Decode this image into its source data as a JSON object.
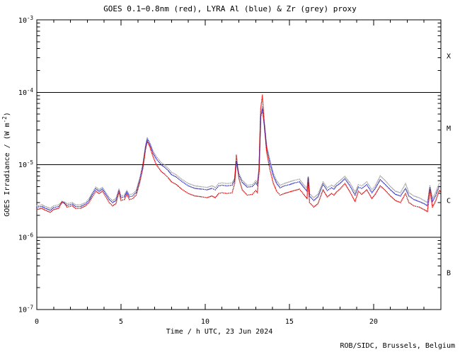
{
  "title": "GOES 0.1−0.8nm (red), LYRA Al (blue) & Zr (grey) proxy",
  "xlabel": "Time / h UTC, 23 Jun 2024",
  "ylabel_main": "GOES Irradiance / (W m",
  "ylabel_sup": "-2",
  "ylabel_close": ")",
  "credit": "ROB/SIDC, Brussels, Belgium",
  "flare_class_labels": [
    "X",
    "M",
    "C",
    "B"
  ],
  "y_axis": {
    "base": "10",
    "exponents": [
      "-3",
      "-4",
      "-5",
      "-6",
      "-7"
    ]
  },
  "x_tick_labels": [
    "0",
    "5",
    "10",
    "15",
    "20"
  ],
  "colors": {
    "red": "#d40000",
    "blue": "#2424bb",
    "grey": "#9a9a9a",
    "axis": "#000000",
    "background": "#ffffff"
  },
  "chart_data": {
    "type": "line",
    "style": "dotted",
    "title": "GOES 0.1−0.8nm (red), LYRA Al (blue) & Zr (grey) proxy",
    "xlabel": "Time / h UTC, 23 Jun 2024",
    "ylabel": "GOES Irradiance / (W m^-2)",
    "xlim": [
      0,
      24
    ],
    "x_major_ticks": [
      0,
      5,
      10,
      15,
      20
    ],
    "x_minor_step_hours": 1,
    "y_log_range_exponents": [
      -3,
      -7
    ],
    "grid": false,
    "legend": "encoded in title colors",
    "hlines_wm2": [
      0.0001,
      1e-05,
      1e-06
    ],
    "value_unit": "1e-6 W m^-2",
    "x_hours": [
      0,
      0.3,
      0.5,
      0.8,
      1,
      1.3,
      1.5,
      1.65,
      1.8,
      2.1,
      2.3,
      2.6,
      2.9,
      3.1,
      3.3,
      3.5,
      3.7,
      3.9,
      4.1,
      4.3,
      4.5,
      4.7,
      4.88,
      5,
      5.2,
      5.35,
      5.5,
      5.7,
      5.9,
      6.1,
      6.3,
      6.45,
      6.56,
      6.7,
      6.9,
      7.1,
      7.4,
      7.6,
      7.8,
      8,
      8.3,
      8.6,
      9,
      9.4,
      9.8,
      10.1,
      10.4,
      10.6,
      10.8,
      11,
      11.3,
      11.6,
      11.75,
      11.85,
      12,
      12.2,
      12.5,
      12.8,
      13,
      13.1,
      13.2,
      13.3,
      13.4,
      13.5,
      13.65,
      13.85,
      14.05,
      14.25,
      14.45,
      14.7,
      15,
      15.3,
      15.6,
      15.85,
      16.05,
      16.12,
      16.2,
      16.45,
      16.7,
      17,
      17.25,
      17.5,
      17.65,
      17.8,
      18,
      18.3,
      18.6,
      18.9,
      19.1,
      19.3,
      19.6,
      19.9,
      20.1,
      20.4,
      20.7,
      21,
      21.3,
      21.6,
      21.9,
      22.1,
      22.4,
      22.7,
      23,
      23.2,
      23.35,
      23.5,
      23.7,
      23.9,
      24
    ],
    "series": [
      {
        "name": "GOES 0.1-0.8nm",
        "color_key": "red",
        "values": [
          2.4,
          2.5,
          2.35,
          2.2,
          2.4,
          2.5,
          3.1,
          2.9,
          2.6,
          2.7,
          2.5,
          2.5,
          2.7,
          3.0,
          3.6,
          4.3,
          4.0,
          4.3,
          3.6,
          3.0,
          2.7,
          2.9,
          4.2,
          3.2,
          3.3,
          3.9,
          3.3,
          3.4,
          3.8,
          5.5,
          9.0,
          16,
          21,
          18,
          13,
          10,
          8.0,
          7.4,
          6.6,
          5.8,
          5.3,
          4.6,
          4.0,
          3.7,
          3.6,
          3.5,
          3.7,
          3.5,
          4.0,
          4.1,
          4.0,
          4.1,
          5.5,
          13.5,
          6.5,
          4.5,
          3.8,
          3.9,
          4.4,
          4.1,
          8.0,
          60,
          91,
          40,
          15,
          8.5,
          5.5,
          4.3,
          3.8,
          4.0,
          4.2,
          4.4,
          4.6,
          3.9,
          3.4,
          6.5,
          3.0,
          2.6,
          2.9,
          4.5,
          3.6,
          4.0,
          3.8,
          4.2,
          4.6,
          5.5,
          4.2,
          3.1,
          4.3,
          3.9,
          4.5,
          3.4,
          3.9,
          5.1,
          4.4,
          3.7,
          3.2,
          3.0,
          4.0,
          3.0,
          2.7,
          2.6,
          2.4,
          2.25,
          4.5,
          2.6,
          3.2,
          4.4,
          4.2
        ]
      },
      {
        "name": "LYRA Al proxy",
        "color_key": "blue",
        "values": [
          2.6,
          2.65,
          2.5,
          2.35,
          2.55,
          2.65,
          3.0,
          2.95,
          2.75,
          2.85,
          2.65,
          2.65,
          2.85,
          3.2,
          3.9,
          4.65,
          4.3,
          4.6,
          3.9,
          3.3,
          3.0,
          3.2,
          4.4,
          3.5,
          3.6,
          4.2,
          3.6,
          3.7,
          4.15,
          6.0,
          9.7,
          17,
          22.5,
          19.5,
          14.5,
          12,
          9.9,
          9.2,
          8.3,
          7.3,
          6.7,
          5.9,
          5.1,
          4.7,
          4.6,
          4.5,
          4.7,
          4.5,
          5.1,
          5.2,
          5.1,
          5.2,
          6.2,
          11,
          7.2,
          5.7,
          4.9,
          5.0,
          5.6,
          5.2,
          8.5,
          46,
          58,
          37,
          17,
          10.5,
          7.0,
          5.5,
          4.8,
          5.1,
          5.3,
          5.6,
          5.8,
          4.9,
          4.3,
          6.6,
          3.7,
          3.2,
          3.6,
          5.4,
          4.4,
          4.8,
          4.6,
          5.1,
          5.5,
          6.4,
          5.1,
          3.8,
          4.9,
          4.7,
          5.3,
          4.1,
          4.7,
          6.2,
          5.3,
          4.5,
          3.9,
          3.7,
          4.7,
          3.7,
          3.3,
          3.1,
          2.9,
          2.7,
          4.8,
          3.1,
          3.8,
          5.0,
          4.8
        ]
      },
      {
        "name": "LYRA Zr proxy",
        "color_key": "grey",
        "values": [
          2.7,
          2.8,
          2.65,
          2.5,
          2.7,
          2.8,
          3.1,
          3.05,
          2.9,
          3.0,
          2.8,
          2.8,
          3.0,
          3.4,
          4.1,
          4.9,
          4.55,
          4.85,
          4.1,
          3.5,
          3.2,
          3.4,
          4.6,
          3.7,
          3.8,
          4.4,
          3.85,
          3.95,
          4.4,
          6.3,
          10.2,
          18,
          23.5,
          20.5,
          15.5,
          13,
          10.6,
          9.9,
          8.9,
          7.9,
          7.2,
          6.3,
          5.5,
          5.1,
          4.95,
          4.85,
          5.1,
          4.85,
          5.5,
          5.6,
          5.5,
          5.6,
          6.5,
          10.5,
          7.6,
          6.1,
          5.2,
          5.3,
          6.0,
          5.6,
          9.0,
          49,
          63,
          40,
          18.5,
          11.5,
          7.6,
          6.0,
          5.2,
          5.5,
          5.8,
          6.1,
          6.3,
          5.3,
          4.7,
          6.8,
          4.0,
          3.5,
          3.9,
          5.8,
          4.8,
          5.2,
          5.0,
          5.5,
          6.0,
          6.9,
          5.6,
          4.2,
          5.3,
          5.1,
          5.8,
          4.5,
          5.1,
          7.0,
          6.0,
          5.0,
          4.3,
          4.1,
          5.5,
          4.1,
          3.7,
          3.5,
          3.2,
          3.0,
          5.1,
          3.4,
          4.2,
          5.5,
          5.3
        ]
      }
    ]
  }
}
